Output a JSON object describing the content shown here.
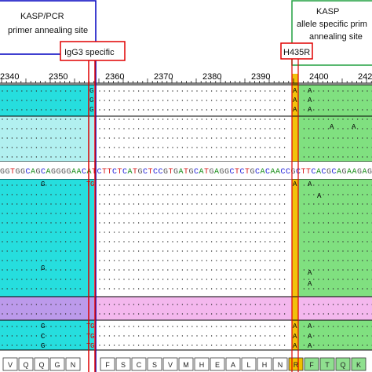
{
  "annotations": {
    "kasp_pcr_title": "KASP/PCR",
    "kasp_pcr_subtitle": "primer annealing site",
    "kasp_title": "KASP",
    "kasp_subtitle_1": "allele specific prim",
    "kasp_subtitle_2": "annealing site",
    "igg3_label": "IgG3 specific",
    "h435r_label": "H435R"
  },
  "ruler": {
    "positions": [
      "2340",
      "2350",
      "2360",
      "2370",
      "2380",
      "2390",
      "2400",
      "242"
    ]
  },
  "consensus_sequence": "GGTGGCAGCAGGGGAACATCTTCTCATGCTCCGTGATGCATGAGGCTCTGCACAACCGCTTCACGCAGAAGAG",
  "variant_marks": {
    "igg3_column_G": "G",
    "igg3_column_T": "T",
    "h435r_column": "A",
    "downstream_A": "A",
    "upstream_G": "G",
    "upstream_C": "C"
  },
  "amino_acids": {
    "left": [
      "V",
      "Q",
      "Q",
      "G",
      "N"
    ],
    "right": [
      "F",
      "S",
      "C",
      "S",
      "V",
      "M",
      "H",
      "E",
      "A",
      "L",
      "H",
      "N",
      "R",
      "F",
      "T",
      "Q",
      "K"
    ]
  },
  "colors": {
    "cyan_band": "#00d8d8",
    "green_band": "#60d860",
    "pink_band": "#f0a0e8",
    "violet_band": "#b088e8",
    "kasp_pcr_border": "#0000c0",
    "kasp_border": "#20a040",
    "igg3_line": "#e00000",
    "h435r_column": "#f0c000"
  }
}
